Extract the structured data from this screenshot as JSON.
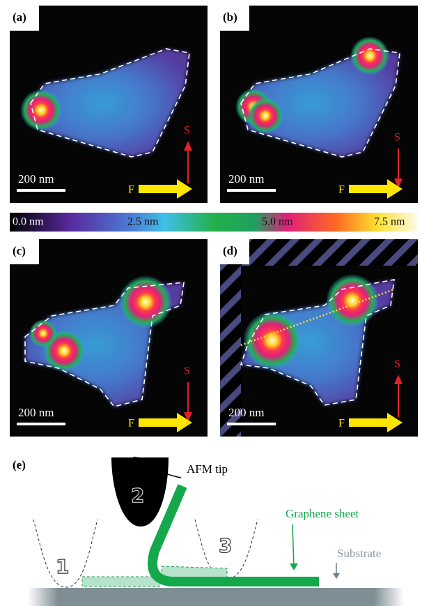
{
  "panels": [
    {
      "label": "(a)",
      "scale_bar": "200 nm",
      "s_label": "S",
      "f_label": "F"
    },
    {
      "label": "(b)",
      "scale_bar": "200 nm",
      "s_label": "S",
      "f_label": "F"
    },
    {
      "label": "(c)",
      "scale_bar": "200 nm",
      "s_label": "S",
      "f_label": "F"
    },
    {
      "label": "(d)",
      "scale_bar": "200 nm",
      "s_label": "S",
      "f_label": "F"
    }
  ],
  "colorbar": {
    "labels": [
      "0.0 nm",
      "2.5 nm",
      "5.0 nm",
      "7.5 nm"
    ]
  },
  "schematic": {
    "label": "(e)",
    "afm_tip": "AFM tip",
    "graphene_sheet": "Graphene sheet",
    "substrate": "Substrate",
    "positions": [
      "1",
      "2",
      "3"
    ]
  }
}
